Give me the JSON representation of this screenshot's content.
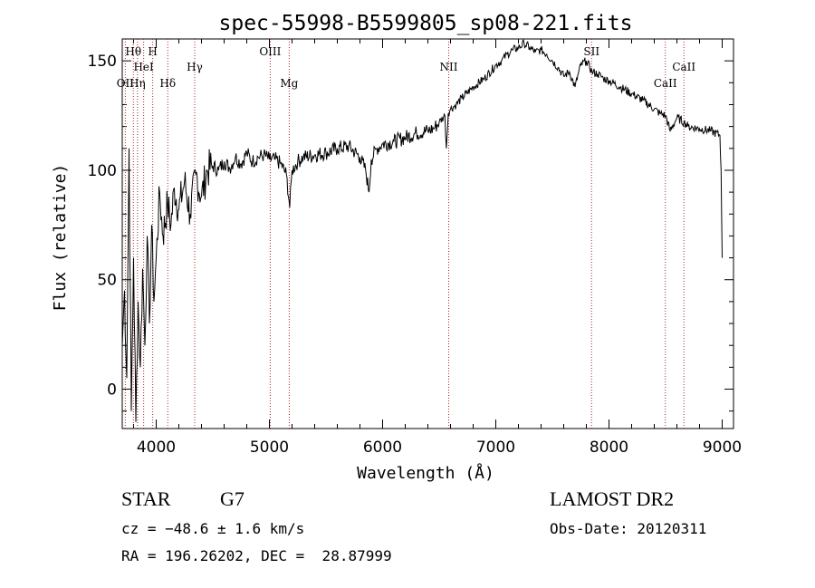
{
  "chart_data": {
    "type": "line",
    "title": "spec-55998-B5599805_sp08-221.fits",
    "xlabel": "Wavelength (Å)",
    "ylabel": "Flux (relative)",
    "xlim": [
      3700,
      9100
    ],
    "ylim": [
      -18,
      160
    ],
    "x_ticks": [
      4000,
      5000,
      6000,
      7000,
      8000,
      9000
    ],
    "y_ticks": [
      0,
      50,
      100,
      150
    ],
    "grid": false,
    "legend": "none",
    "line_color": "#000000",
    "marker_color": "#b22222",
    "series": [
      {
        "x": [
          3700,
          3720,
          3740,
          3760,
          3780,
          3800,
          3820,
          3840,
          3860,
          3880,
          3900,
          3920,
          3940,
          3960,
          3980,
          4000,
          4030,
          4060,
          4100,
          4130,
          4160,
          4200,
          4250,
          4300,
          4350,
          4400,
          4450,
          4500,
          4550,
          4600,
          4650,
          4700,
          4750,
          4800,
          4850,
          4900,
          4950,
          5000,
          5050,
          5100,
          5150,
          5180,
          5200,
          5250,
          5300,
          5400,
          5500,
          5600,
          5700,
          5800,
          5850,
          5880,
          5900,
          5950,
          6000,
          6100,
          6200,
          6300,
          6400,
          6450,
          6500,
          6550,
          6563,
          6580,
          6600,
          6650,
          6700,
          6800,
          6900,
          7000,
          7050,
          7100,
          7150,
          7200,
          7250,
          7300,
          7350,
          7400,
          7450,
          7500,
          7550,
          7600,
          7650,
          7700,
          7750,
          7800,
          7850,
          7900,
          7950,
          8000,
          8100,
          8200,
          8300,
          8400,
          8450,
          8500,
          8540,
          8600,
          8662,
          8700,
          8800,
          8900,
          8980,
          8990,
          9000
        ],
        "y": [
          20,
          45,
          5,
          110,
          -10,
          60,
          -15,
          40,
          10,
          55,
          20,
          70,
          30,
          75,
          40,
          60,
          90,
          70,
          85,
          75,
          92,
          82,
          95,
          80,
          98,
          88,
          100,
          102,
          100,
          104,
          101,
          106,
          103,
          108,
          104,
          106,
          107,
          105,
          105,
          103,
          98,
          83,
          100,
          104,
          106,
          107,
          108,
          110,
          111,
          106,
          100,
          90,
          105,
          110,
          112,
          113,
          115,
          117,
          118,
          119,
          122,
          125,
          110,
          126,
          128,
          130,
          133,
          138,
          142,
          148,
          150,
          153,
          155,
          156,
          158,
          156,
          154,
          155,
          153,
          150,
          147,
          143,
          145,
          138,
          148,
          150,
          145,
          144,
          142,
          141,
          138,
          135,
          132,
          128,
          126,
          125,
          118,
          124,
          122,
          120,
          119,
          118,
          116,
          100,
          60
        ]
      }
    ],
    "lines": [
      {
        "label": "OII",
        "x": 3727,
        "level": 3
      },
      {
        "label": "Hθ",
        "x": 3798,
        "level": 1
      },
      {
        "label": "Hη",
        "x": 3835,
        "level": 3
      },
      {
        "label": "HeI",
        "x": 3889,
        "level": 2
      },
      {
        "label": "H",
        "x": 3969,
        "level": 1
      },
      {
        "label": "Hδ",
        "x": 4102,
        "level": 3
      },
      {
        "label": "Hγ",
        "x": 4340,
        "level": 2
      },
      {
        "label": "OIII",
        "x": 5007,
        "level": 1
      },
      {
        "label": "Mg",
        "x": 5175,
        "level": 3
      },
      {
        "label": "NII",
        "x": 6584,
        "level": 2
      },
      {
        "label": "SII",
        "x": 7846,
        "level": 1
      },
      {
        "label": "CaII",
        "x": 8498,
        "level": 3
      },
      {
        "label": "CaII",
        "x": 8662,
        "level": 2
      }
    ]
  },
  "info": {
    "object_class": "STAR",
    "subclass": "G7",
    "survey": "LAMOST DR2",
    "cz": "cz = −48.6 ± 1.6 km/s",
    "obs_date": "Obs-Date: 20120311",
    "radec": "RA = 196.26202, DEC =  28.87999"
  }
}
